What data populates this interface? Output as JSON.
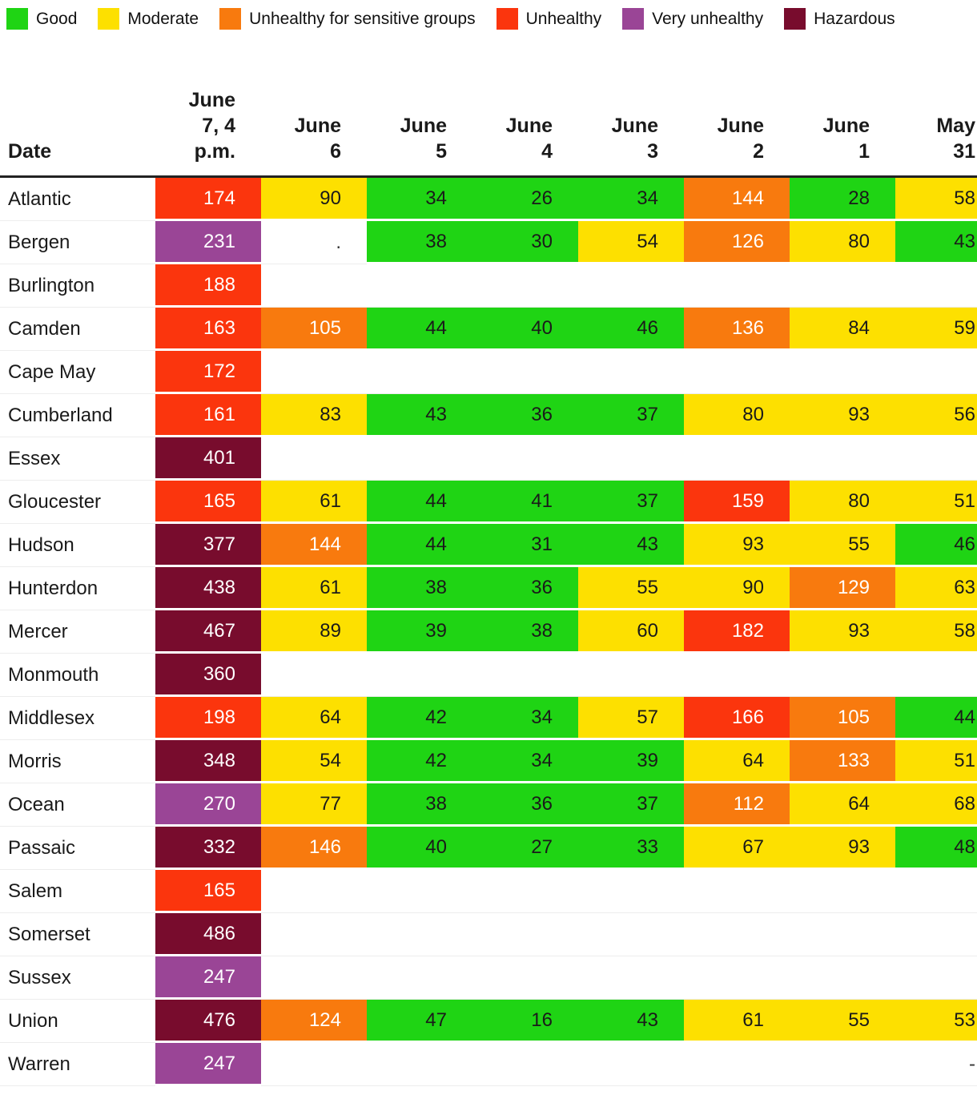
{
  "legend": {
    "items": [
      {
        "label": "Good",
        "color": "#1fd414"
      },
      {
        "label": "Moderate",
        "color": "#fde000"
      },
      {
        "label": "Unhealthy for sensitive groups",
        "color": "#f87a0e"
      },
      {
        "label": "Unhealthy",
        "color": "#fb350d"
      },
      {
        "label": "Very unhealthy",
        "color": "#9a4596"
      },
      {
        "label": "Hazardous",
        "color": "#780c2d"
      }
    ]
  },
  "chart_data": {
    "type": "heatmap",
    "title": "",
    "legend_position": "top",
    "corner_label": "Date",
    "columns": [
      "June 7, 4 p.m.",
      "June 6",
      "June 5",
      "June 4",
      "June 3",
      "June 2",
      "June 1",
      "May 31"
    ],
    "column_display": [
      "June\n7, 4\np.m.",
      "June\n6",
      "June\n5",
      "June\n4",
      "June\n3",
      "June\n2",
      "June\n1",
      "May\n31"
    ],
    "level_colors": {
      "good": {
        "bg": "#1fd414",
        "text": "#1a1a1a"
      },
      "moderate": {
        "bg": "#fde000",
        "text": "#1a1a1a"
      },
      "usg": {
        "bg": "#f87a0e",
        "text": "#ffffff"
      },
      "unhealthy": {
        "bg": "#fb350d",
        "text": "#ffffff"
      },
      "very_unhealthy": {
        "bg": "#9a4596",
        "text": "#ffffff"
      },
      "hazardous": {
        "bg": "#780c2d",
        "text": "#ffffff"
      }
    },
    "rows": [
      {
        "county": "Atlantic",
        "cells": [
          [
            "174",
            "unhealthy"
          ],
          [
            "90",
            "moderate"
          ],
          [
            "34",
            "good"
          ],
          [
            "26",
            "good"
          ],
          [
            "34",
            "good"
          ],
          [
            "144",
            "usg"
          ],
          [
            "28",
            "good"
          ],
          [
            "58",
            "moderate"
          ]
        ]
      },
      {
        "county": "Bergen",
        "cells": [
          [
            "231",
            "very_unhealthy"
          ],
          [
            ".",
            "none"
          ],
          [
            "38",
            "good"
          ],
          [
            "30",
            "good"
          ],
          [
            "54",
            "moderate"
          ],
          [
            "126",
            "usg"
          ],
          [
            "80",
            "moderate"
          ],
          [
            "43",
            "good"
          ]
        ]
      },
      {
        "county": "Burlington",
        "cells": [
          [
            "188",
            "unhealthy"
          ],
          [
            "",
            "none"
          ],
          [
            "",
            "none"
          ],
          [
            "",
            "none"
          ],
          [
            "",
            "none"
          ],
          [
            "",
            "none"
          ],
          [
            "",
            "none"
          ],
          [
            "",
            "none"
          ]
        ]
      },
      {
        "county": "Camden",
        "cells": [
          [
            "163",
            "unhealthy"
          ],
          [
            "105",
            "usg"
          ],
          [
            "44",
            "good"
          ],
          [
            "40",
            "good"
          ],
          [
            "46",
            "good"
          ],
          [
            "136",
            "usg"
          ],
          [
            "84",
            "moderate"
          ],
          [
            "59",
            "moderate"
          ]
        ]
      },
      {
        "county": "Cape May",
        "cells": [
          [
            "172",
            "unhealthy"
          ],
          [
            "",
            "none"
          ],
          [
            "",
            "none"
          ],
          [
            "",
            "none"
          ],
          [
            "",
            "none"
          ],
          [
            "",
            "none"
          ],
          [
            "",
            "none"
          ],
          [
            "",
            "none"
          ]
        ]
      },
      {
        "county": "Cumberland",
        "cells": [
          [
            "161",
            "unhealthy"
          ],
          [
            "83",
            "moderate"
          ],
          [
            "43",
            "good"
          ],
          [
            "36",
            "good"
          ],
          [
            "37",
            "good"
          ],
          [
            "80",
            "moderate"
          ],
          [
            "93",
            "moderate"
          ],
          [
            "56",
            "moderate"
          ]
        ]
      },
      {
        "county": "Essex",
        "cells": [
          [
            "401",
            "hazardous"
          ],
          [
            "",
            "none"
          ],
          [
            "",
            "none"
          ],
          [
            "",
            "none"
          ],
          [
            "",
            "none"
          ],
          [
            "",
            "none"
          ],
          [
            "",
            "none"
          ],
          [
            "",
            "none"
          ]
        ]
      },
      {
        "county": "Gloucester",
        "cells": [
          [
            "165",
            "unhealthy"
          ],
          [
            "61",
            "moderate"
          ],
          [
            "44",
            "good"
          ],
          [
            "41",
            "good"
          ],
          [
            "37",
            "good"
          ],
          [
            "159",
            "unhealthy"
          ],
          [
            "80",
            "moderate"
          ],
          [
            "51",
            "moderate"
          ]
        ]
      },
      {
        "county": "Hudson",
        "cells": [
          [
            "377",
            "hazardous"
          ],
          [
            "144",
            "usg"
          ],
          [
            "44",
            "good"
          ],
          [
            "31",
            "good"
          ],
          [
            "43",
            "good"
          ],
          [
            "93",
            "moderate"
          ],
          [
            "55",
            "moderate"
          ],
          [
            "46",
            "good"
          ]
        ]
      },
      {
        "county": "Hunterdon",
        "cells": [
          [
            "438",
            "hazardous"
          ],
          [
            "61",
            "moderate"
          ],
          [
            "38",
            "good"
          ],
          [
            "36",
            "good"
          ],
          [
            "55",
            "moderate"
          ],
          [
            "90",
            "moderate"
          ],
          [
            "129",
            "usg"
          ],
          [
            "63",
            "moderate"
          ]
        ]
      },
      {
        "county": "Mercer",
        "cells": [
          [
            "467",
            "hazardous"
          ],
          [
            "89",
            "moderate"
          ],
          [
            "39",
            "good"
          ],
          [
            "38",
            "good"
          ],
          [
            "60",
            "moderate"
          ],
          [
            "182",
            "unhealthy"
          ],
          [
            "93",
            "moderate"
          ],
          [
            "58",
            "moderate"
          ]
        ]
      },
      {
        "county": "Monmouth",
        "cells": [
          [
            "360",
            "hazardous"
          ],
          [
            "",
            "none"
          ],
          [
            "",
            "none"
          ],
          [
            "",
            "none"
          ],
          [
            "",
            "none"
          ],
          [
            "",
            "none"
          ],
          [
            "",
            "none"
          ],
          [
            "",
            "none"
          ]
        ]
      },
      {
        "county": "Middlesex",
        "cells": [
          [
            "198",
            "unhealthy"
          ],
          [
            "64",
            "moderate"
          ],
          [
            "42",
            "good"
          ],
          [
            "34",
            "good"
          ],
          [
            "57",
            "moderate"
          ],
          [
            "166",
            "unhealthy"
          ],
          [
            "105",
            "usg"
          ],
          [
            "44",
            "good"
          ]
        ]
      },
      {
        "county": "Morris",
        "cells": [
          [
            "348",
            "hazardous"
          ],
          [
            "54",
            "moderate"
          ],
          [
            "42",
            "good"
          ],
          [
            "34",
            "good"
          ],
          [
            "39",
            "good"
          ],
          [
            "64",
            "moderate"
          ],
          [
            "133",
            "usg"
          ],
          [
            "51",
            "moderate"
          ]
        ]
      },
      {
        "county": "Ocean",
        "cells": [
          [
            "270",
            "very_unhealthy"
          ],
          [
            "77",
            "moderate"
          ],
          [
            "38",
            "good"
          ],
          [
            "36",
            "good"
          ],
          [
            "37",
            "good"
          ],
          [
            "112",
            "usg"
          ],
          [
            "64",
            "moderate"
          ],
          [
            "68",
            "moderate"
          ]
        ]
      },
      {
        "county": "Passaic",
        "cells": [
          [
            "332",
            "hazardous"
          ],
          [
            "146",
            "usg"
          ],
          [
            "40",
            "good"
          ],
          [
            "27",
            "good"
          ],
          [
            "33",
            "good"
          ],
          [
            "67",
            "moderate"
          ],
          [
            "93",
            "moderate"
          ],
          [
            "48",
            "good"
          ]
        ]
      },
      {
        "county": "Salem",
        "cells": [
          [
            "165",
            "unhealthy"
          ],
          [
            "",
            "none"
          ],
          [
            "",
            "none"
          ],
          [
            "",
            "none"
          ],
          [
            "",
            "none"
          ],
          [
            "",
            "none"
          ],
          [
            "",
            "none"
          ],
          [
            "",
            "none"
          ]
        ]
      },
      {
        "county": "Somerset",
        "cells": [
          [
            "486",
            "hazardous"
          ],
          [
            "",
            "none"
          ],
          [
            "",
            "none"
          ],
          [
            "",
            "none"
          ],
          [
            "",
            "none"
          ],
          [
            "",
            "none"
          ],
          [
            "",
            "none"
          ],
          [
            "",
            "none"
          ]
        ]
      },
      {
        "county": "Sussex",
        "cells": [
          [
            "247",
            "very_unhealthy"
          ],
          [
            "",
            "none"
          ],
          [
            "",
            "none"
          ],
          [
            "",
            "none"
          ],
          [
            "",
            "none"
          ],
          [
            "",
            "none"
          ],
          [
            "",
            "none"
          ],
          [
            "",
            "none"
          ]
        ]
      },
      {
        "county": "Union",
        "cells": [
          [
            "476",
            "hazardous"
          ],
          [
            "124",
            "usg"
          ],
          [
            "47",
            "good"
          ],
          [
            "16",
            "good"
          ],
          [
            "43",
            "good"
          ],
          [
            "61",
            "moderate"
          ],
          [
            "55",
            "moderate"
          ],
          [
            "53",
            "moderate"
          ]
        ]
      },
      {
        "county": "Warren",
        "cells": [
          [
            "247",
            "very_unhealthy"
          ],
          [
            "",
            "none"
          ],
          [
            "",
            "none"
          ],
          [
            "",
            "none"
          ],
          [
            "",
            "none"
          ],
          [
            "",
            "none"
          ],
          [
            "",
            "none"
          ],
          [
            "-",
            "none"
          ]
        ]
      }
    ]
  }
}
